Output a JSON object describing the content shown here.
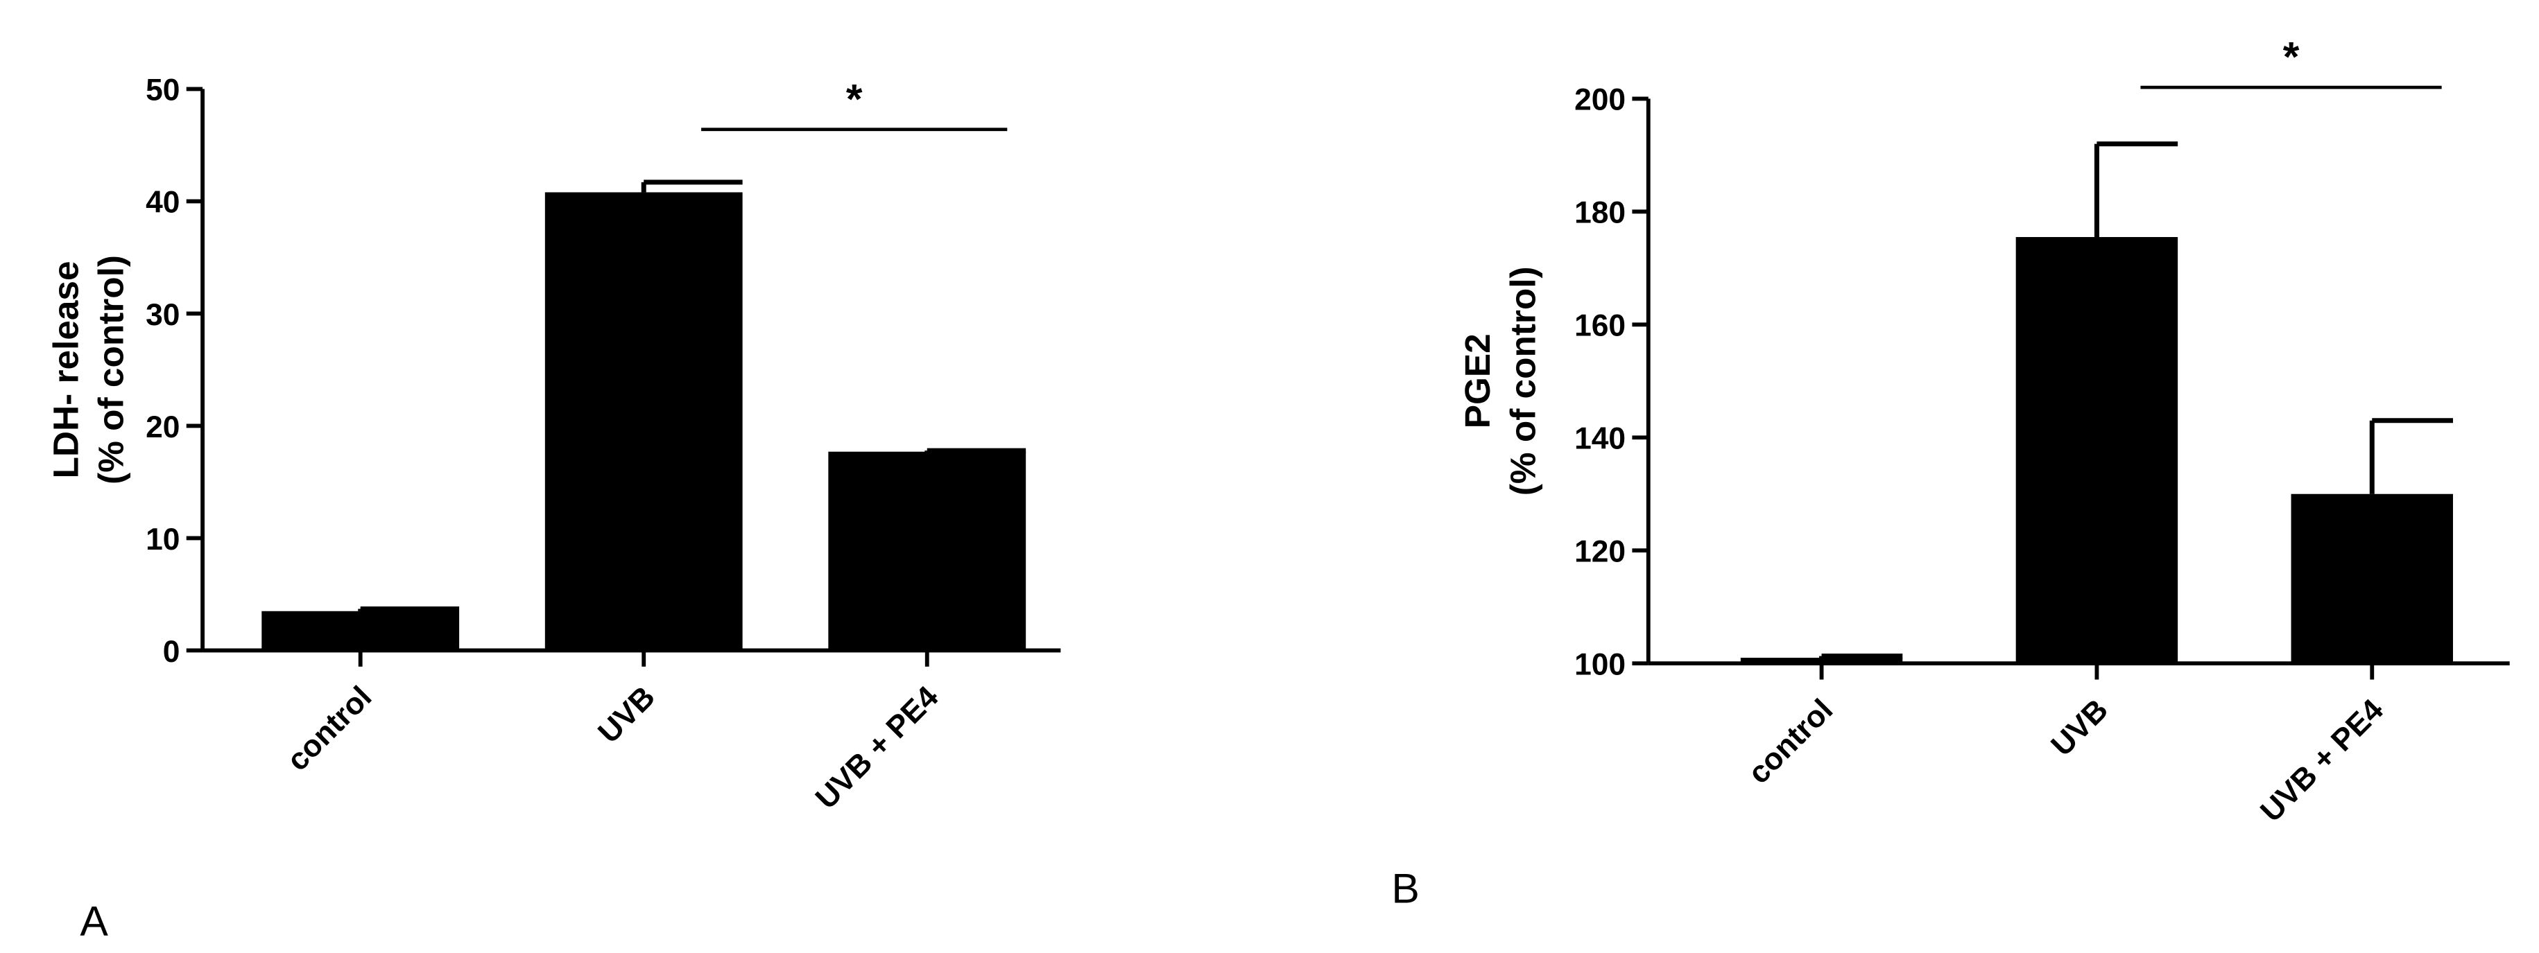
{
  "chart_data": [
    {
      "type": "bar",
      "panel": "A",
      "ylabel": [
        "LDH- release",
        "(% of control)"
      ],
      "categories": [
        "control",
        "UVB",
        "UVB + PE4"
      ],
      "values": [
        3.5,
        40.8,
        17.7
      ],
      "errors": [
        0.2,
        0.9,
        0.1
      ],
      "color": "#000000",
      "ylim": [
        0,
        50
      ],
      "yticks": [
        0,
        10,
        20,
        30,
        40,
        50
      ],
      "annotation": "*"
    },
    {
      "type": "bar",
      "panel": "B",
      "ylabel": [
        "PGE2",
        "(% of control)"
      ],
      "categories": [
        "control",
        "UVB",
        "UVB + PE4"
      ],
      "values": [
        101,
        175.5,
        130
      ],
      "errors": [
        0.3,
        16.5,
        13
      ],
      "color": "#000000",
      "ylim": [
        100,
        200
      ],
      "yticks": [
        100,
        120,
        140,
        160,
        180,
        200
      ],
      "annotation": "*"
    }
  ]
}
